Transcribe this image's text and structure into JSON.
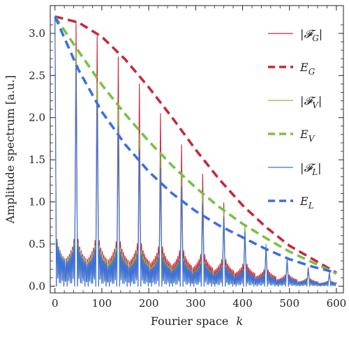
{
  "chart_data": {
    "type": "line",
    "xlabel": "Fourier space",
    "xlabel_var": "k",
    "ylabel": "Amplitude spectrum [a.u.]",
    "xlim": [
      -10,
      615
    ],
    "ylim": [
      -0.08,
      3.33
    ],
    "x_ticks": [
      0,
      100,
      200,
      300,
      400,
      500,
      600
    ],
    "y_ticks": [
      0.0,
      0.5,
      1.0,
      1.5,
      2.0,
      2.5,
      3.0
    ],
    "y_tick_labels": [
      "0.0",
      "0.5",
      "1.0",
      "1.5",
      "2.0",
      "2.5",
      "3.0"
    ],
    "grid": false,
    "legend_position": "top-right",
    "peak_spacing": 45,
    "series": [
      {
        "name": "|𝓕_G|",
        "legend_main": "|𝓕",
        "legend_sub": "G",
        "legend_close": "|",
        "kind": "spectrum",
        "color": "#c8283a",
        "peaks": [
          [
            0,
            3.2
          ],
          [
            45,
            3.14
          ],
          [
            90,
            2.97
          ],
          [
            135,
            2.72
          ],
          [
            180,
            2.4
          ],
          [
            225,
            2.05
          ],
          [
            270,
            1.68
          ],
          [
            315,
            1.33
          ],
          [
            360,
            0.99
          ],
          [
            405,
            0.72
          ],
          [
            450,
            0.5
          ],
          [
            495,
            0.32
          ],
          [
            540,
            0.22
          ],
          [
            585,
            0.16
          ]
        ],
        "sidelobe": [
          0.74,
          0.74,
          0.72,
          0.7,
          0.67,
          0.62,
          0.56,
          0.5,
          0.42,
          0.35,
          0.26,
          0.18,
          0.12,
          0.08
        ]
      },
      {
        "name": "E_G",
        "legend_main": "E",
        "legend_sub": "G",
        "legend_close": "",
        "kind": "envelope",
        "color": "#c8283a",
        "points": [
          [
            0,
            3.2
          ],
          [
            50,
            3.13
          ],
          [
            100,
            2.96
          ],
          [
            150,
            2.69
          ],
          [
            200,
            2.36
          ],
          [
            250,
            2.0
          ],
          [
            300,
            1.62
          ],
          [
            350,
            1.27
          ],
          [
            400,
            0.96
          ],
          [
            450,
            0.7
          ],
          [
            500,
            0.48
          ],
          [
            550,
            0.32
          ],
          [
            600,
            0.16
          ]
        ]
      },
      {
        "name": "|𝓕_V|",
        "legend_main": "|𝓕",
        "legend_sub": "V",
        "legend_close": "|",
        "kind": "spectrum",
        "color": "#79c044",
        "peaks": [
          [
            0,
            3.2
          ],
          [
            45,
            2.8
          ],
          [
            90,
            2.42
          ],
          [
            135,
            2.1
          ],
          [
            180,
            1.8
          ],
          [
            225,
            1.55
          ],
          [
            270,
            1.32
          ],
          [
            315,
            1.1
          ],
          [
            360,
            0.9
          ],
          [
            405,
            0.72
          ],
          [
            450,
            0.5
          ],
          [
            495,
            0.31
          ],
          [
            540,
            0.2
          ],
          [
            585,
            0.15
          ]
        ],
        "sidelobe": [
          0.72,
          0.68,
          0.64,
          0.6,
          0.56,
          0.5,
          0.44,
          0.38,
          0.32,
          0.26,
          0.2,
          0.14,
          0.1,
          0.07
        ]
      },
      {
        "name": "E_V",
        "legend_main": "E",
        "legend_sub": "V",
        "legend_close": "",
        "kind": "envelope",
        "color": "#79c044",
        "points": [
          [
            0,
            3.2
          ],
          [
            50,
            2.79
          ],
          [
            100,
            2.39
          ],
          [
            150,
            2.04
          ],
          [
            200,
            1.72
          ],
          [
            250,
            1.43
          ],
          [
            300,
            1.17
          ],
          [
            350,
            0.94
          ],
          [
            400,
            0.74
          ],
          [
            450,
            0.57
          ],
          [
            500,
            0.41
          ],
          [
            550,
            0.28
          ],
          [
            600,
            0.15
          ]
        ]
      },
      {
        "name": "|𝓕_L|",
        "legend_main": "|𝓕",
        "legend_sub": "L",
        "legend_close": "|",
        "kind": "spectrum",
        "color": "#3a6fe0",
        "peaks": [
          [
            0,
            3.2
          ],
          [
            45,
            2.6
          ],
          [
            90,
            2.2
          ],
          [
            135,
            1.9
          ],
          [
            180,
            1.62
          ],
          [
            225,
            1.4
          ],
          [
            270,
            1.18
          ],
          [
            315,
            0.98
          ],
          [
            360,
            0.82
          ],
          [
            405,
            0.64
          ],
          [
            450,
            0.46
          ],
          [
            495,
            0.32
          ],
          [
            540,
            0.22
          ],
          [
            585,
            0.16
          ]
        ],
        "sidelobe": [
          0.7,
          0.64,
          0.58,
          0.54,
          0.5,
          0.45,
          0.4,
          0.35,
          0.3,
          0.25,
          0.19,
          0.14,
          0.1,
          0.07
        ]
      },
      {
        "name": "E_L",
        "legend_main": "E",
        "legend_sub": "L",
        "legend_close": "",
        "kind": "envelope",
        "color": "#3a6fe0",
        "points": [
          [
            0,
            3.2
          ],
          [
            50,
            2.57
          ],
          [
            100,
            2.07
          ],
          [
            150,
            1.68
          ],
          [
            200,
            1.36
          ],
          [
            250,
            1.1
          ],
          [
            300,
            0.89
          ],
          [
            350,
            0.72
          ],
          [
            400,
            0.58
          ],
          [
            450,
            0.44
          ],
          [
            500,
            0.32
          ],
          [
            550,
            0.23
          ],
          [
            600,
            0.16
          ]
        ]
      }
    ]
  }
}
